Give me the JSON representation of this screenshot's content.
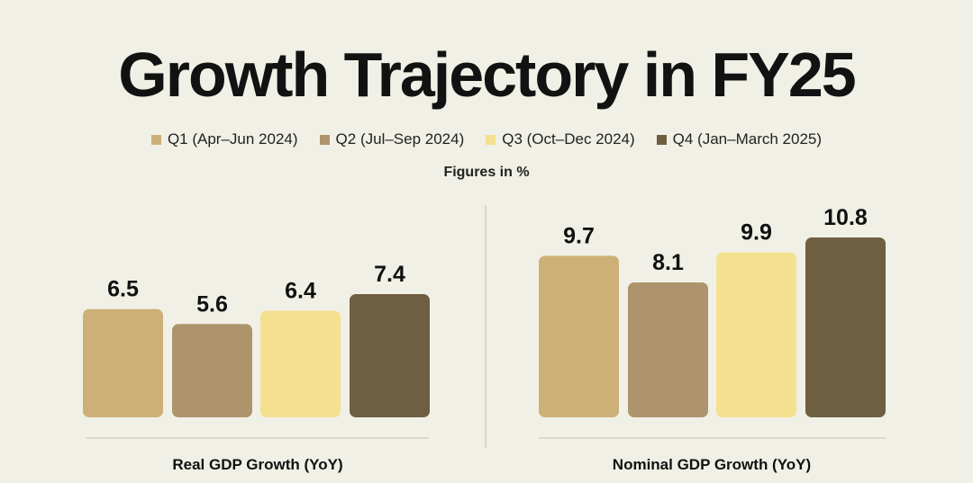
{
  "title": "Growth Trajectory in FY25",
  "note": "Figures in %",
  "colors": {
    "q1": "#cdb077",
    "q2": "#ae946c",
    "q3": "#f4e08f",
    "q4": "#6f5f42"
  },
  "chart_data": [
    {
      "type": "bar",
      "title": "Real GDP Growth (YoY)",
      "categories": [
        "Q1 (Apr–Jun 2024)",
        "Q2 (Jul–Sep 2024)",
        "Q3 (Oct–Dec 2024)",
        "Q4 (Jan–March 2025)"
      ],
      "values": [
        6.5,
        5.6,
        6.4,
        7.4
      ],
      "labels": [
        "6.5",
        "5.6",
        "6.4",
        "7.4"
      ],
      "ylim": [
        0,
        12
      ]
    },
    {
      "type": "bar",
      "title": "Nominal GDP Growth (YoY)",
      "categories": [
        "Q1 (Apr–Jun 2024)",
        "Q2 (Jul–Sep 2024)",
        "Q3 (Oct–Dec 2024)",
        "Q4 (Jan–March 2025)"
      ],
      "values": [
        9.7,
        8.1,
        9.9,
        10.8
      ],
      "labels": [
        "9.7",
        "8.1",
        "9.9",
        "10.8"
      ],
      "ylim": [
        0,
        12
      ]
    }
  ],
  "legend": [
    {
      "label": "Q1 (Apr–Jun 2024)",
      "color": "#cdb077"
    },
    {
      "label": "Q2 (Jul–Sep 2024)",
      "color": "#ae946c"
    },
    {
      "label": "Q3 (Oct–Dec 2024)",
      "color": "#f4e08f"
    },
    {
      "label": "Q4 (Jan–March 2025)",
      "color": "#6f5f42"
    }
  ]
}
